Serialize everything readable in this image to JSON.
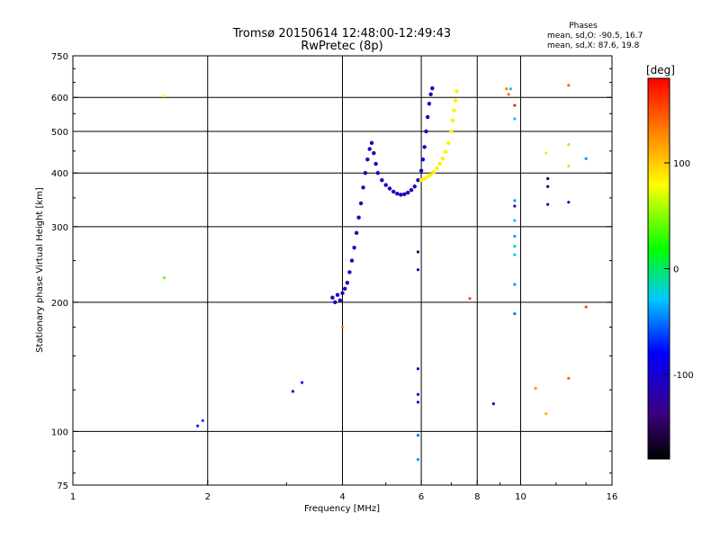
{
  "chart_data": {
    "type": "scatter",
    "title": "Tromsø 20150614 12:48:00-12:49:43",
    "subtitle": "RwPretec (8p)",
    "stats": {
      "heading": "Phases",
      "line_o": "mean, sd,O: -90.5, 16.7",
      "line_x": "mean, sd,X:  87.6, 19.8"
    },
    "xlabel": "Frequency [MHz]",
    "ylabel": "Stationary phase Virtual Height [km]",
    "x_scale": "log",
    "y_scale": "log",
    "xlim": [
      1,
      16
    ],
    "ylim": [
      75,
      750
    ],
    "x_ticks": [
      {
        "value": 1,
        "label": "1"
      },
      {
        "value": 2,
        "label": "2"
      },
      {
        "value": 4,
        "label": "4"
      },
      {
        "value": 6,
        "label": "6"
      },
      {
        "value": 8,
        "label": "8"
      },
      {
        "value": 10,
        "label": "10"
      },
      {
        "value": 16,
        "label": "16"
      }
    ],
    "y_ticks": [
      {
        "value": 75,
        "label": "75"
      },
      {
        "value": 100,
        "label": "100"
      },
      {
        "value": 200,
        "label": "200"
      },
      {
        "value": 300,
        "label": "300"
      },
      {
        "value": 400,
        "label": "400"
      },
      {
        "value": 500,
        "label": "500"
      },
      {
        "value": 600,
        "label": "600"
      },
      {
        "value": 750,
        "label": "750"
      }
    ],
    "x_grid": [
      2,
      4,
      6,
      8,
      10
    ],
    "y_grid": [
      100,
      200,
      300,
      400,
      500,
      600
    ],
    "grid": true,
    "colorbar": {
      "label": "[deg]",
      "range": [
        -180,
        180
      ],
      "ticks": [
        {
          "value": 100,
          "label": "100"
        },
        {
          "value": 0,
          "label": "0"
        },
        {
          "value": -100,
          "label": "-100"
        }
      ]
    },
    "traces": [
      {
        "phase": -110,
        "points": [
          [
            3.8,
            205
          ],
          [
            3.85,
            200
          ],
          [
            3.9,
            208
          ],
          [
            3.95,
            202
          ],
          [
            4.0,
            210
          ],
          [
            4.05,
            215
          ],
          [
            4.1,
            222
          ],
          [
            4.15,
            235
          ],
          [
            4.2,
            250
          ],
          [
            4.25,
            268
          ],
          [
            4.3,
            290
          ],
          [
            4.35,
            315
          ],
          [
            4.4,
            340
          ],
          [
            4.45,
            370
          ],
          [
            4.5,
            400
          ],
          [
            4.55,
            430
          ],
          [
            4.6,
            455
          ],
          [
            4.65,
            470
          ],
          [
            4.7,
            445
          ],
          [
            4.75,
            420
          ],
          [
            4.8,
            400
          ],
          [
            4.9,
            385
          ],
          [
            5.0,
            375
          ],
          [
            5.1,
            368
          ],
          [
            5.2,
            362
          ],
          [
            5.3,
            358
          ],
          [
            5.4,
            356
          ],
          [
            5.5,
            357
          ],
          [
            5.6,
            360
          ],
          [
            5.7,
            365
          ],
          [
            5.8,
            372
          ],
          [
            5.9,
            385
          ],
          [
            6.0,
            405
          ],
          [
            6.05,
            430
          ],
          [
            6.1,
            460
          ],
          [
            6.15,
            500
          ],
          [
            6.2,
            540
          ],
          [
            6.25,
            580
          ],
          [
            6.3,
            610
          ],
          [
            6.35,
            630
          ]
        ]
      },
      {
        "phase": 85,
        "points": [
          [
            6.0,
            385
          ],
          [
            6.1,
            388
          ],
          [
            6.2,
            392
          ],
          [
            6.3,
            396
          ],
          [
            6.4,
            402
          ],
          [
            6.5,
            410
          ],
          [
            6.6,
            420
          ],
          [
            6.7,
            432
          ],
          [
            6.8,
            448
          ],
          [
            6.9,
            470
          ],
          [
            7.0,
            500
          ],
          [
            7.05,
            530
          ],
          [
            7.1,
            560
          ],
          [
            7.15,
            590
          ],
          [
            7.2,
            620
          ]
        ]
      }
    ],
    "scatter_points": [
      {
        "x": 1.6,
        "y": 605,
        "phase": 80
      },
      {
        "x": 1.6,
        "y": 228,
        "phase": 40
      },
      {
        "x": 1.9,
        "y": 103,
        "phase": -70
      },
      {
        "x": 1.95,
        "y": 106,
        "phase": -60
      },
      {
        "x": 3.1,
        "y": 124,
        "phase": -110
      },
      {
        "x": 3.25,
        "y": 130,
        "phase": -80
      },
      {
        "x": 4.0,
        "y": 175,
        "phase": 130
      },
      {
        "x": 5.9,
        "y": 262,
        "phase": -150
      },
      {
        "x": 5.9,
        "y": 238,
        "phase": -130
      },
      {
        "x": 5.9,
        "y": 140,
        "phase": -90
      },
      {
        "x": 5.9,
        "y": 122,
        "phase": -110
      },
      {
        "x": 5.9,
        "y": 117,
        "phase": -120
      },
      {
        "x": 5.9,
        "y": 98,
        "phase": -50
      },
      {
        "x": 5.9,
        "y": 86,
        "phase": -40
      },
      {
        "x": 7.7,
        "y": 204,
        "phase": 150
      },
      {
        "x": 8.7,
        "y": 116,
        "phase": -110
      },
      {
        "x": 9.3,
        "y": 628,
        "phase": 130
      },
      {
        "x": 9.4,
        "y": 610,
        "phase": 140
      },
      {
        "x": 9.5,
        "y": 628,
        "phase": -20
      },
      {
        "x": 9.7,
        "y": 575,
        "phase": 170
      },
      {
        "x": 9.7,
        "y": 535,
        "phase": -30
      },
      {
        "x": 9.7,
        "y": 345,
        "phase": -40
      },
      {
        "x": 9.7,
        "y": 335,
        "phase": -130
      },
      {
        "x": 9.7,
        "y": 310,
        "phase": -30
      },
      {
        "x": 9.7,
        "y": 285,
        "phase": -40
      },
      {
        "x": 9.7,
        "y": 270,
        "phase": -20
      },
      {
        "x": 9.7,
        "y": 258,
        "phase": -30
      },
      {
        "x": 9.7,
        "y": 220,
        "phase": -40
      },
      {
        "x": 9.7,
        "y": 188,
        "phase": -50
      },
      {
        "x": 10.8,
        "y": 126,
        "phase": 120
      },
      {
        "x": 11.4,
        "y": 445,
        "phase": 90
      },
      {
        "x": 11.4,
        "y": 110,
        "phase": 110
      },
      {
        "x": 11.5,
        "y": 388,
        "phase": -170
      },
      {
        "x": 11.5,
        "y": 372,
        "phase": -150
      },
      {
        "x": 11.5,
        "y": 338,
        "phase": -120
      },
      {
        "x": 12.8,
        "y": 640,
        "phase": 140
      },
      {
        "x": 12.8,
        "y": 466,
        "phase": 100
      },
      {
        "x": 12.8,
        "y": 415,
        "phase": 60
      },
      {
        "x": 12.8,
        "y": 342,
        "phase": -100
      },
      {
        "x": 12.8,
        "y": 133,
        "phase": 140
      },
      {
        "x": 14.0,
        "y": 432,
        "phase": -40
      },
      {
        "x": 14.0,
        "y": 195,
        "phase": 150
      }
    ]
  }
}
